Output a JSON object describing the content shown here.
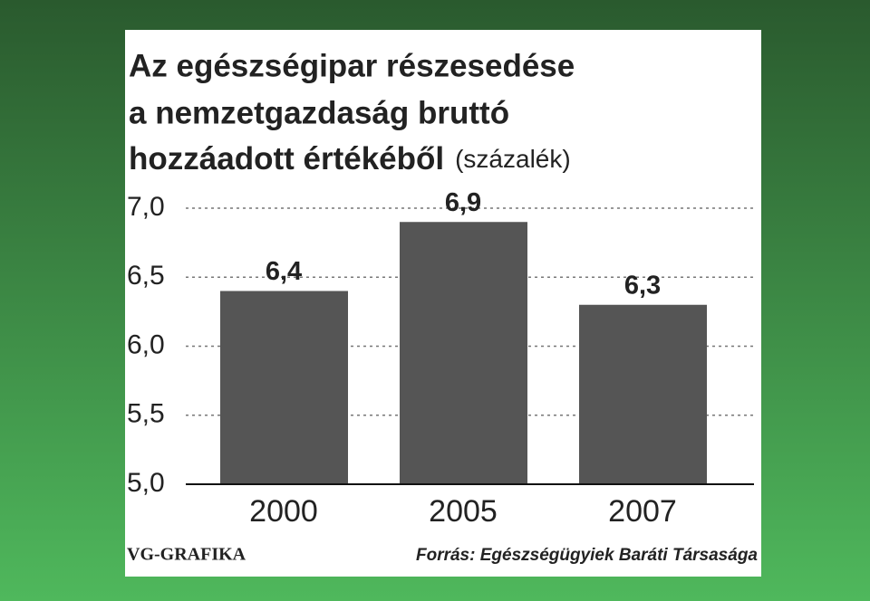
{
  "chart_data": {
    "type": "bar",
    "title_lines": [
      "Az egészségipar részesedése",
      "a nemzetgazdaság bruttó",
      "hozzáadott értékéből"
    ],
    "unit": "(százalék)",
    "categories": [
      "2000",
      "2005",
      "2007"
    ],
    "values": [
      6.4,
      6.9,
      6.3
    ],
    "value_labels": [
      "6,4",
      "6,9",
      "6,3"
    ],
    "color": "#555555",
    "ylim": [
      5,
      7
    ],
    "yticks": [
      {
        "value": 5,
        "label": "5,0"
      },
      {
        "value": 5.5,
        "label": "5,5"
      },
      {
        "value": 6,
        "label": "6,0"
      },
      {
        "value": 6.5,
        "label": "6,5"
      },
      {
        "value": 7,
        "label": "7,0"
      }
    ],
    "grid": true,
    "credit": "VG-GRAFIKA",
    "source": "Forrás: Egészségügyiek Baráti Társasága"
  }
}
